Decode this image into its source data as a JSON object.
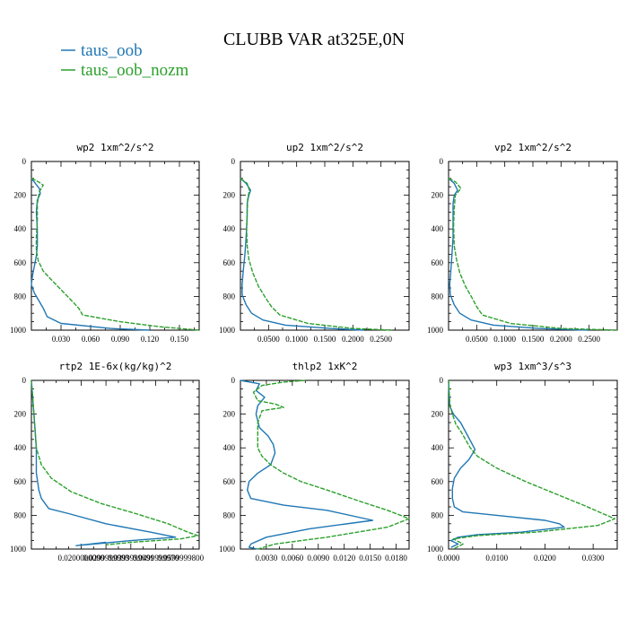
{
  "title": "CLUBB VAR at325E,0N",
  "legend": [
    {
      "label": "taus_oob",
      "color": "#1f77b4"
    },
    {
      "label": "taus_oob_nozm",
      "color": "#2ca02c"
    }
  ],
  "chart_data": [
    {
      "type": "line",
      "title": "wp2  1xm^2/s^2",
      "xlim": [
        0,
        0.17
      ],
      "ylim": [
        0,
        1000
      ],
      "y_inverted": true,
      "xticks": [
        0.03,
        0.06,
        0.09,
        0.12,
        0.15
      ],
      "xtick_labels": [
        "0.030",
        "0.060",
        "0.090",
        "0.120",
        "0.150"
      ],
      "yticks": [
        0,
        200,
        400,
        600,
        800,
        1000
      ],
      "series": [
        {
          "name": "taus_oob",
          "x": [
            0.0,
            0.004,
            0.008,
            0.009,
            0.006,
            0.005,
            0.006,
            0.006,
            0.005,
            0.003,
            0.001,
            0.0,
            0.003,
            0.008,
            0.012,
            0.016,
            0.03,
            0.08,
            0.12
          ],
          "y": [
            100,
            130,
            160,
            190,
            230,
            300,
            400,
            500,
            560,
            620,
            680,
            730,
            780,
            830,
            870,
            920,
            960,
            990,
            1000
          ]
        },
        {
          "name": "taus_oob_nozm",
          "x": [
            0.0,
            0.007,
            0.012,
            0.008,
            0.006,
            0.006,
            0.005,
            0.005,
            0.007,
            0.012,
            0.02,
            0.03,
            0.04,
            0.048,
            0.052,
            0.09,
            0.13,
            0.17
          ],
          "y": [
            100,
            120,
            140,
            180,
            250,
            350,
            450,
            530,
            590,
            650,
            700,
            760,
            820,
            870,
            910,
            950,
            980,
            1000
          ]
        }
      ]
    },
    {
      "type": "line",
      "title": "up2  1xm^2/s^2",
      "xlim": [
        0,
        0.3
      ],
      "ylim": [
        0,
        1000
      ],
      "y_inverted": true,
      "xticks": [
        0.05,
        0.1,
        0.15,
        0.2,
        0.25
      ],
      "xtick_labels": [
        "0.0500",
        "0.1000",
        "0.1500",
        "0.2000",
        "0.2500"
      ],
      "yticks": [
        0,
        200,
        400,
        600,
        800,
        1000
      ],
      "series": [
        {
          "name": "taus_oob",
          "x": [
            0.0,
            0.01,
            0.018,
            0.015,
            0.012,
            0.012,
            0.01,
            0.008,
            0.005,
            0.003,
            0.003,
            0.01,
            0.02,
            0.04,
            0.08,
            0.16,
            0.22
          ],
          "y": [
            100,
            130,
            170,
            200,
            250,
            330,
            450,
            550,
            650,
            730,
            790,
            850,
            900,
            940,
            970,
            990,
            1000
          ]
        },
        {
          "name": "taus_oob_nozm",
          "x": [
            0.0,
            0.012,
            0.016,
            0.013,
            0.012,
            0.011,
            0.012,
            0.015,
            0.022,
            0.032,
            0.045,
            0.055,
            0.07,
            0.12,
            0.2,
            0.27
          ],
          "y": [
            100,
            130,
            170,
            220,
            300,
            400,
            500,
            580,
            660,
            740,
            810,
            860,
            910,
            960,
            990,
            1000
          ]
        }
      ]
    },
    {
      "type": "line",
      "title": "vp2  1xm^2/s^2",
      "xlim": [
        0,
        0.3
      ],
      "ylim": [
        0,
        1000
      ],
      "y_inverted": true,
      "xticks": [
        0.05,
        0.1,
        0.15,
        0.2,
        0.25
      ],
      "xtick_labels": [
        "0.0500",
        "0.1000",
        "0.1500",
        "0.2000",
        "0.2500"
      ],
      "yticks": [
        0,
        200,
        400,
        600,
        800,
        1000
      ],
      "series": [
        {
          "name": "taus_oob",
          "x": [
            0.0,
            0.01,
            0.016,
            0.01,
            0.008,
            0.008,
            0.008,
            0.006,
            0.004,
            0.002,
            0.003,
            0.01,
            0.02,
            0.04,
            0.08,
            0.16,
            0.25
          ],
          "y": [
            100,
            130,
            170,
            200,
            250,
            330,
            450,
            550,
            650,
            730,
            790,
            850,
            900,
            940,
            970,
            990,
            1000
          ]
        },
        {
          "name": "taus_oob_nozm",
          "x": [
            0.0,
            0.012,
            0.022,
            0.012,
            0.01,
            0.009,
            0.01,
            0.014,
            0.02,
            0.03,
            0.042,
            0.05,
            0.06,
            0.11,
            0.2,
            0.3
          ],
          "y": [
            100,
            120,
            160,
            200,
            280,
            380,
            500,
            580,
            660,
            740,
            810,
            860,
            910,
            960,
            990,
            1000
          ]
        }
      ]
    },
    {
      "type": "line",
      "title": "rtp2  1E-6x(kg/kg)^2",
      "xlim": [
        0,
        0.0675
      ],
      "ylim": [
        0,
        1000
      ],
      "y_inverted": true,
      "xticks": [
        0.02,
        0.03,
        0.04,
        0.05,
        0.06
      ],
      "xtick_labels": [
        "0.0200000000",
        "0.0299999993",
        "0.0399999991",
        "0.0499999970",
        "0.0599999800"
      ],
      "yticks": [
        0,
        200,
        400,
        600,
        800,
        1000
      ],
      "series": [
        {
          "name": "taus_oob",
          "x": [
            0.0,
            0.001,
            0.002,
            0.002,
            0.003,
            0.004,
            0.007,
            0.015,
            0.03,
            0.048,
            0.058,
            0.04,
            0.018,
            0.03
          ],
          "y": [
            0,
            200,
            400,
            550,
            650,
            700,
            760,
            790,
            850,
            900,
            930,
            950,
            980,
            960
          ]
        },
        {
          "name": "taus_oob_nozm",
          "x": [
            0.0,
            0.001,
            0.002,
            0.004,
            0.008,
            0.016,
            0.028,
            0.042,
            0.055,
            0.063,
            0.067,
            0.06,
            0.04,
            0.03
          ],
          "y": [
            0,
            200,
            400,
            500,
            580,
            660,
            730,
            790,
            850,
            900,
            920,
            940,
            960,
            975
          ]
        }
      ]
    },
    {
      "type": "line",
      "title": "thlp2  1xK^2",
      "xlim": [
        0,
        0.0195
      ],
      "ylim": [
        0,
        1000
      ],
      "y_inverted": true,
      "xticks": [
        0.003,
        0.006,
        0.009,
        0.012,
        0.015,
        0.018
      ],
      "xtick_labels": [
        "0.0030",
        "0.0060",
        "0.0090",
        "0.0120",
        "0.0150",
        "0.0180"
      ],
      "yticks": [
        0,
        200,
        400,
        600,
        800,
        1000
      ],
      "series": [
        {
          "name": "taus_oob",
          "x": [
            0.0,
            0.0022,
            0.0018,
            0.0028,
            0.002,
            0.0018,
            0.0022,
            0.0032,
            0.0038,
            0.004,
            0.0035,
            0.002,
            0.001,
            0.0008,
            0.0012,
            0.005,
            0.01,
            0.0153,
            0.008,
            0.003,
            0.0012,
            0.001,
            0.002
          ],
          "y": [
            0,
            20,
            60,
            100,
            150,
            200,
            280,
            330,
            380,
            430,
            500,
            550,
            600,
            650,
            700,
            740,
            770,
            830,
            880,
            930,
            970,
            990,
            1000
          ]
        },
        {
          "name": "taus_oob_nozm",
          "x": [
            0.0075,
            0.005,
            0.0025,
            0.0015,
            0.002,
            0.004,
            0.005,
            0.0025,
            0.002,
            0.002,
            0.002,
            0.0025,
            0.0035,
            0.005,
            0.007,
            0.01,
            0.014,
            0.017,
            0.0185,
            0.0195,
            0.017,
            0.01,
            0.004,
            0.002
          ],
          "y": [
            0,
            10,
            30,
            70,
            120,
            140,
            160,
            180,
            250,
            350,
            400,
            450,
            500,
            550,
            600,
            650,
            720,
            770,
            800,
            820,
            870,
            930,
            970,
            1000
          ]
        }
      ]
    },
    {
      "type": "line",
      "title": "wp3  1xm^3/s^3",
      "xlim": [
        0,
        0.035
      ],
      "ylim": [
        0,
        1000
      ],
      "y_inverted": true,
      "xticks": [
        0.0,
        0.01,
        0.02,
        0.03
      ],
      "xtick_labels": [
        "0.0000",
        "0.0100",
        "0.0200",
        "0.0300"
      ],
      "yticks": [
        0,
        200,
        400,
        600,
        800,
        1000
      ],
      "series": [
        {
          "name": "taus_oob",
          "x": [
            0.0,
            0.0002,
            0.001,
            0.0025,
            0.004,
            0.0055,
            0.0042,
            0.0025,
            0.0012,
            0.0008,
            0.0008,
            0.0012,
            0.003,
            0.01,
            0.02,
            0.023,
            0.024,
            0.015,
            0.006,
            0.002,
            0.0005,
            0.002,
            0.0005
          ],
          "y": [
            0,
            150,
            200,
            250,
            330,
            410,
            470,
            520,
            580,
            640,
            700,
            750,
            780,
            800,
            830,
            850,
            870,
            900,
            915,
            930,
            950,
            970,
            990
          ]
        },
        {
          "name": "taus_oob_nozm",
          "x": [
            0.0,
            0.0003,
            0.0008,
            0.0015,
            0.0025,
            0.0035,
            0.0045,
            0.006,
            0.01,
            0.016,
            0.022,
            0.028,
            0.032,
            0.0345,
            0.031,
            0.018,
            0.006,
            0.001,
            0.003,
            0.001
          ],
          "y": [
            0,
            150,
            200,
            260,
            300,
            350,
            400,
            450,
            520,
            600,
            670,
            740,
            790,
            820,
            860,
            900,
            920,
            940,
            970,
            1000
          ]
        }
      ]
    }
  ]
}
